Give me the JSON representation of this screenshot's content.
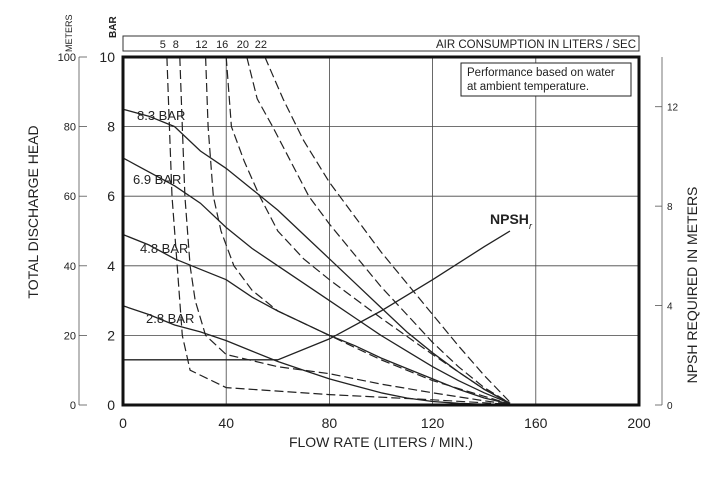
{
  "chart_data": {
    "type": "line",
    "title": "",
    "note": [
      "Performance based on water",
      "at ambient temperature."
    ],
    "xlabel": "FLOW RATE (LITERS / MIN.)",
    "xlim": [
      0,
      200
    ],
    "x_ticks": [
      0,
      40,
      80,
      120,
      160,
      200
    ],
    "y_left_unit": "METERS",
    "y_left_title": "TOTAL DISCHARGE HEAD",
    "y_left_lim": [
      0,
      100
    ],
    "y_left_ticks": [
      0,
      20,
      40,
      60,
      80,
      100
    ],
    "y_bar_unit": "BAR",
    "y_bar_lim": [
      0,
      10
    ],
    "y_bar_ticks": [
      0,
      2,
      4,
      6,
      8,
      10
    ],
    "y_right_title": "NPSH REQUIRED IN METERS",
    "y_right_lim": [
      0,
      14
    ],
    "y_right_ticks": [
      0,
      4,
      8,
      12
    ],
    "top_axis_title": "AIR CONSUMPTION IN LITERS / SEC",
    "grid": true,
    "pressure_series": [
      {
        "name": "8.3 BAR",
        "points": [
          [
            0,
            8.5
          ],
          [
            10,
            8.3
          ],
          [
            20,
            8.0
          ],
          [
            30,
            7.3
          ],
          [
            40,
            6.8
          ],
          [
            50,
            6.2
          ],
          [
            60,
            5.6
          ],
          [
            70,
            4.9
          ],
          [
            80,
            4.2
          ],
          [
            90,
            3.5
          ],
          [
            100,
            2.8
          ],
          [
            110,
            2.1
          ],
          [
            120,
            1.5
          ],
          [
            130,
            0.95
          ],
          [
            140,
            0.45
          ],
          [
            150,
            0.05
          ]
        ]
      },
      {
        "name": "6.9 BAR",
        "points": [
          [
            0,
            7.1
          ],
          [
            5,
            6.9
          ],
          [
            20,
            6.3
          ],
          [
            30,
            5.8
          ],
          [
            40,
            5.1
          ],
          [
            50,
            4.5
          ],
          [
            60,
            4.0
          ],
          [
            70,
            3.5
          ],
          [
            80,
            3.0
          ],
          [
            90,
            2.5
          ],
          [
            100,
            2.0
          ],
          [
            110,
            1.55
          ],
          [
            120,
            1.1
          ],
          [
            130,
            0.7
          ],
          [
            140,
            0.35
          ],
          [
            150,
            0.05
          ]
        ]
      },
      {
        "name": "4.8 BAR",
        "points": [
          [
            0,
            4.9
          ],
          [
            10,
            4.6
          ],
          [
            20,
            4.2
          ],
          [
            30,
            3.9
          ],
          [
            40,
            3.6
          ],
          [
            50,
            3.1
          ],
          [
            60,
            2.7
          ],
          [
            70,
            2.35
          ],
          [
            80,
            2.0
          ],
          [
            90,
            1.7
          ],
          [
            100,
            1.35
          ],
          [
            110,
            1.05
          ],
          [
            120,
            0.75
          ],
          [
            130,
            0.45
          ],
          [
            140,
            0.2
          ],
          [
            150,
            0.03
          ]
        ]
      },
      {
        "name": "2.8 BAR",
        "points": [
          [
            0,
            2.85
          ],
          [
            10,
            2.6
          ],
          [
            20,
            2.3
          ],
          [
            30,
            2.1
          ],
          [
            40,
            1.85
          ],
          [
            50,
            1.55
          ],
          [
            60,
            1.25
          ],
          [
            70,
            1.0
          ],
          [
            80,
            0.75
          ],
          [
            90,
            0.55
          ],
          [
            100,
            0.35
          ],
          [
            110,
            0.2
          ],
          [
            120,
            0.1
          ],
          [
            130,
            0.05
          ],
          [
            140,
            0.02
          ],
          [
            150,
            0.0
          ]
        ]
      }
    ],
    "npsh_series": {
      "name": "NPSH",
      "subscript": "r",
      "points": [
        [
          0,
          1.3
        ],
        [
          60,
          1.3
        ],
        [
          80,
          1.9
        ],
        [
          100,
          2.7
        ],
        [
          120,
          3.6
        ],
        [
          140,
          4.55
        ],
        [
          150,
          5.0
        ]
      ]
    },
    "air_series": [
      {
        "name": "5",
        "points": [
          [
            17,
            10
          ],
          [
            18,
            8
          ],
          [
            19,
            6
          ],
          [
            21,
            4
          ],
          [
            23,
            2
          ],
          [
            26,
            1
          ],
          [
            40,
            0.5
          ],
          [
            80,
            0.3
          ],
          [
            120,
            0.15
          ],
          [
            150,
            0.02
          ]
        ]
      },
      {
        "name": "8",
        "points": [
          [
            22,
            10
          ],
          [
            23,
            8
          ],
          [
            24,
            6
          ],
          [
            26,
            4
          ],
          [
            28,
            3
          ],
          [
            32,
            2
          ],
          [
            40,
            1.45
          ],
          [
            60,
            1.1
          ],
          [
            80,
            0.9
          ],
          [
            100,
            0.6
          ],
          [
            120,
            0.35
          ],
          [
            140,
            0.12
          ],
          [
            150,
            0.02
          ]
        ]
      },
      {
        "name": "12",
        "points": [
          [
            32,
            10
          ],
          [
            33,
            8
          ],
          [
            35,
            6
          ],
          [
            38,
            5
          ],
          [
            43,
            4
          ],
          [
            50,
            3.3
          ],
          [
            60,
            2.7
          ],
          [
            80,
            2.0
          ],
          [
            100,
            1.3
          ],
          [
            120,
            0.7
          ],
          [
            140,
            0.25
          ],
          [
            150,
            0.03
          ]
        ]
      },
      {
        "name": "16",
        "points": [
          [
            40,
            10
          ],
          [
            42,
            8
          ],
          [
            47,
            7
          ],
          [
            53,
            6
          ],
          [
            60,
            5
          ],
          [
            70,
            4.2
          ],
          [
            80,
            3.6
          ],
          [
            100,
            2.5
          ],
          [
            120,
            1.45
          ],
          [
            140,
            0.45
          ],
          [
            150,
            0.05
          ]
        ]
      },
      {
        "name": "20",
        "points": [
          [
            48,
            10
          ],
          [
            52,
            8.8
          ],
          [
            58,
            8
          ],
          [
            65,
            7
          ],
          [
            72,
            6
          ],
          [
            80,
            5.2
          ],
          [
            90,
            4.3
          ],
          [
            100,
            3.4
          ],
          [
            110,
            2.6
          ],
          [
            120,
            1.8
          ],
          [
            130,
            1.1
          ],
          [
            140,
            0.5
          ],
          [
            150,
            0.05
          ]
        ]
      },
      {
        "name": "22",
        "points": [
          [
            55,
            10
          ],
          [
            62,
            8.8
          ],
          [
            70,
            7.6
          ],
          [
            80,
            6.4
          ],
          [
            90,
            5.4
          ],
          [
            100,
            4.4
          ],
          [
            110,
            3.5
          ],
          [
            120,
            2.6
          ],
          [
            130,
            1.7
          ],
          [
            140,
            0.85
          ],
          [
            150,
            0.08
          ]
        ]
      }
    ]
  }
}
